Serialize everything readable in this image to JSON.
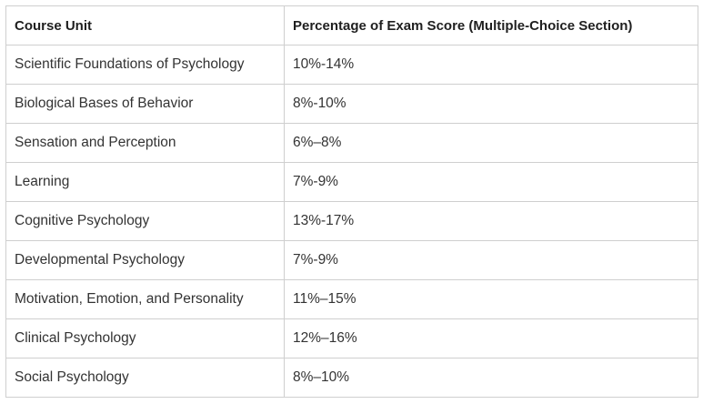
{
  "table": {
    "headers": [
      "Course Unit",
      "Percentage of Exam Score (Multiple-Choice Section)"
    ],
    "rows": [
      [
        "Scientific Foundations of Psychology",
        "10%-14%"
      ],
      [
        "Biological Bases of Behavior",
        "8%-10%"
      ],
      [
        "Sensation and Perception",
        "6%–8%"
      ],
      [
        "Learning",
        "7%-9%"
      ],
      [
        "Cognitive Psychology",
        "13%-17%"
      ],
      [
        "Developmental Psychology",
        "7%-9%"
      ],
      [
        "Motivation, Emotion, and Personality",
        "11%–15%"
      ],
      [
        "Clinical Psychology",
        "12%–16%"
      ],
      [
        "Social Psychology",
        "8%–10%"
      ]
    ]
  },
  "colors": {
    "border": "#cfcfcf",
    "text": "#333333",
    "header_text": "#1f1f1f",
    "background": "#ffffff"
  }
}
